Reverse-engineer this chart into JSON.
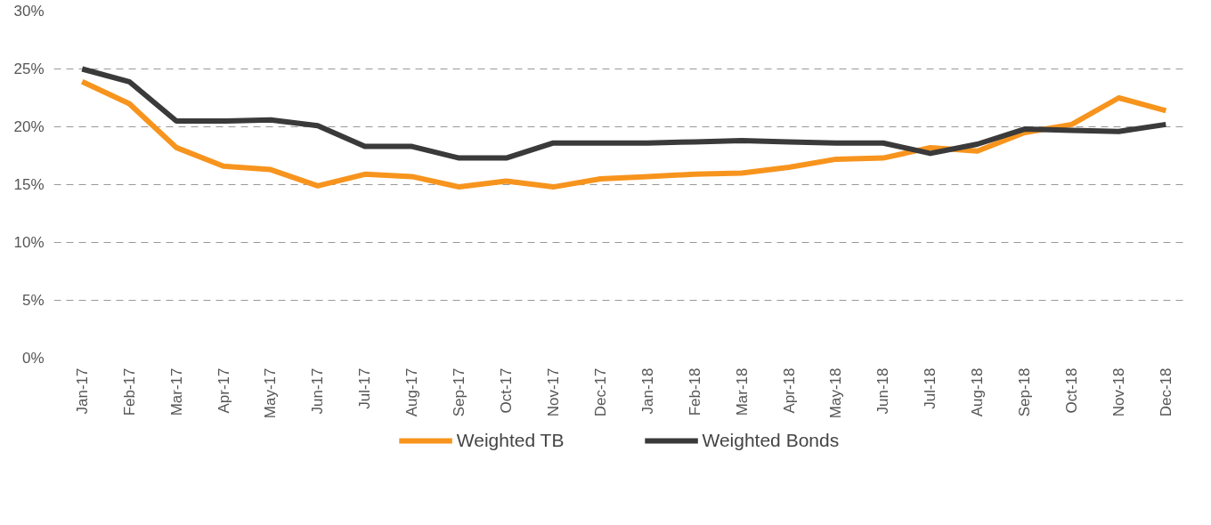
{
  "chart_data": {
    "type": "line",
    "categories": [
      "Jan-17",
      "Feb-17",
      "Mar-17",
      "Apr-17",
      "May-17",
      "Jun-17",
      "Jul-17",
      "Aug-17",
      "Sep-17",
      "Oct-17",
      "Nov-17",
      "Dec-17",
      "Jan-18",
      "Feb-18",
      "Mar-18",
      "Apr-18",
      "May-18",
      "Jun-18",
      "Jul-18",
      "Aug-18",
      "Sep-18",
      "Oct-18",
      "Nov-18",
      "Dec-18"
    ],
    "series": [
      {
        "name": "Weighted TB",
        "color": "#f7941d",
        "values": [
          23.9,
          22.0,
          18.2,
          16.6,
          16.3,
          14.9,
          15.9,
          15.7,
          14.8,
          15.3,
          14.8,
          15.5,
          15.7,
          15.9,
          16.0,
          16.5,
          17.2,
          17.3,
          18.2,
          17.9,
          19.5,
          20.2,
          22.5,
          21.4
        ]
      },
      {
        "name": "Weighted Bonds",
        "color": "#3a3a3a",
        "values": [
          25.0,
          23.9,
          20.5,
          20.5,
          20.6,
          20.1,
          18.3,
          18.3,
          17.3,
          17.3,
          18.6,
          18.6,
          18.6,
          18.7,
          18.8,
          18.7,
          18.6,
          18.6,
          17.7,
          18.5,
          19.8,
          19.7,
          19.6,
          20.2
        ]
      }
    ],
    "ylim": [
      0,
      30
    ],
    "yticks": [
      {
        "value": 0,
        "label": "0%"
      },
      {
        "value": 5,
        "label": "5%"
      },
      {
        "value": 10,
        "label": "10%"
      },
      {
        "value": 15,
        "label": "15%"
      },
      {
        "value": 20,
        "label": "20%"
      },
      {
        "value": 25,
        "label": "25%"
      },
      {
        "value": 30,
        "label": "30%"
      }
    ],
    "grid": "y",
    "legend": "bottom",
    "marker": "none",
    "line_style": "solid"
  }
}
